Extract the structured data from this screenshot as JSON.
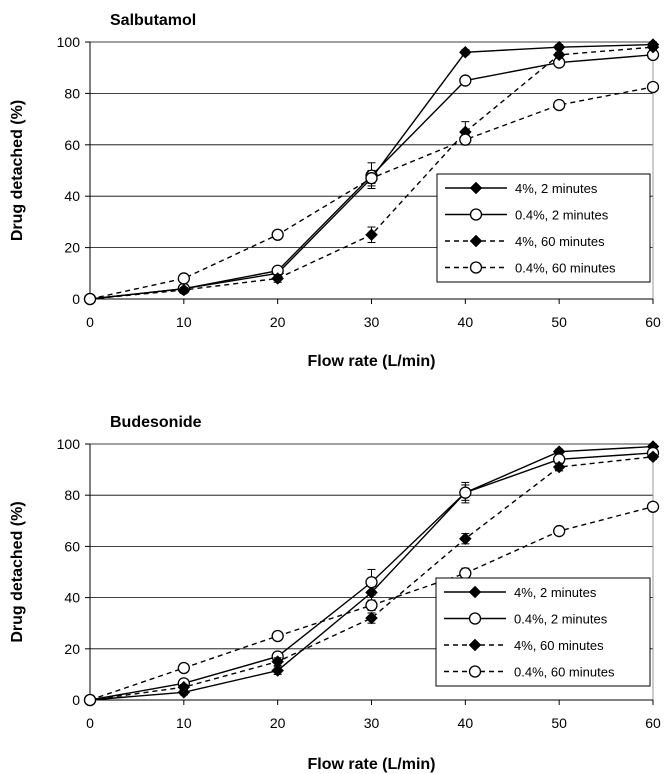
{
  "chart_data": [
    {
      "type": "line",
      "title": "Salbutamol",
      "xlabel": "Flow rate (L/min)",
      "ylabel": "Drug detached (%)",
      "x": [
        0,
        10,
        20,
        30,
        40,
        50,
        60
      ],
      "xlim": [
        0,
        60
      ],
      "ylim": [
        0,
        100
      ],
      "x_ticks": [
        "0",
        "10",
        "20",
        "30",
        "40",
        "50",
        "60"
      ],
      "y_ticks": [
        "0",
        "20",
        "40",
        "60",
        "80",
        "100"
      ],
      "grid": "horizontal",
      "legend_position": "right",
      "series": [
        {
          "name": "4%, 2 minutes",
          "marker": "diamond",
          "line": "solid",
          "values": [
            0,
            4,
            10,
            47,
            96,
            98,
            99
          ],
          "errors": [
            0,
            1,
            1.5,
            3,
            1,
            1,
            1
          ]
        },
        {
          "name": "0.4%, 2 minutes",
          "marker": "circle",
          "line": "solid",
          "values": [
            0,
            4,
            11,
            48,
            85,
            92,
            95
          ],
          "errors": [
            0,
            1,
            1.5,
            5,
            1,
            1.5,
            1
          ]
        },
        {
          "name": "4%, 60 minutes",
          "marker": "diamond",
          "line": "dashed",
          "values": [
            0,
            3.5,
            8,
            25,
            65,
            95,
            98
          ],
          "errors": [
            0,
            1,
            1.5,
            3,
            4,
            1,
            1
          ]
        },
        {
          "name": "0.4%, 60 minutes",
          "marker": "circle",
          "line": "dashed",
          "values": [
            0,
            8,
            25,
            47,
            62,
            75.5,
            82.5
          ],
          "errors": [
            0,
            1,
            1,
            2,
            2,
            1,
            1
          ]
        }
      ]
    },
    {
      "type": "line",
      "title": "Budesonide",
      "xlabel": "Flow rate (L/min)",
      "ylabel": "Drug detached (%)",
      "x": [
        0,
        10,
        20,
        30,
        40,
        50,
        60
      ],
      "xlim": [
        0,
        60
      ],
      "ylim": [
        0,
        100
      ],
      "x_ticks": [
        "0",
        "10",
        "20",
        "30",
        "40",
        "50",
        "60"
      ],
      "y_ticks": [
        "0",
        "20",
        "40",
        "60",
        "80",
        "100"
      ],
      "grid": "horizontal",
      "legend_position": "bottom-right",
      "series": [
        {
          "name": "4%, 2 minutes",
          "marker": "diamond",
          "line": "solid",
          "values": [
            0,
            3,
            11.5,
            42,
            81,
            97,
            99
          ],
          "errors": [
            0,
            1,
            1.5,
            3,
            3,
            1,
            1
          ]
        },
        {
          "name": "0.4%, 2 minutes",
          "marker": "circle",
          "line": "solid",
          "values": [
            0,
            6.5,
            17,
            46,
            81,
            94,
            96.5
          ],
          "errors": [
            0,
            1,
            1.5,
            5,
            4,
            1,
            1
          ]
        },
        {
          "name": "4%, 60 minutes",
          "marker": "diamond",
          "line": "dashed",
          "values": [
            0,
            5,
            15,
            32,
            63,
            91,
            95
          ],
          "errors": [
            0,
            1,
            1.5,
            2,
            2,
            1.5,
            1
          ]
        },
        {
          "name": "0.4%, 60 minutes",
          "marker": "circle",
          "line": "dashed",
          "values": [
            0,
            12.5,
            25,
            37,
            49.5,
            66,
            75.5
          ],
          "errors": [
            0,
            1,
            1,
            2,
            2,
            1,
            1
          ]
        }
      ]
    }
  ]
}
